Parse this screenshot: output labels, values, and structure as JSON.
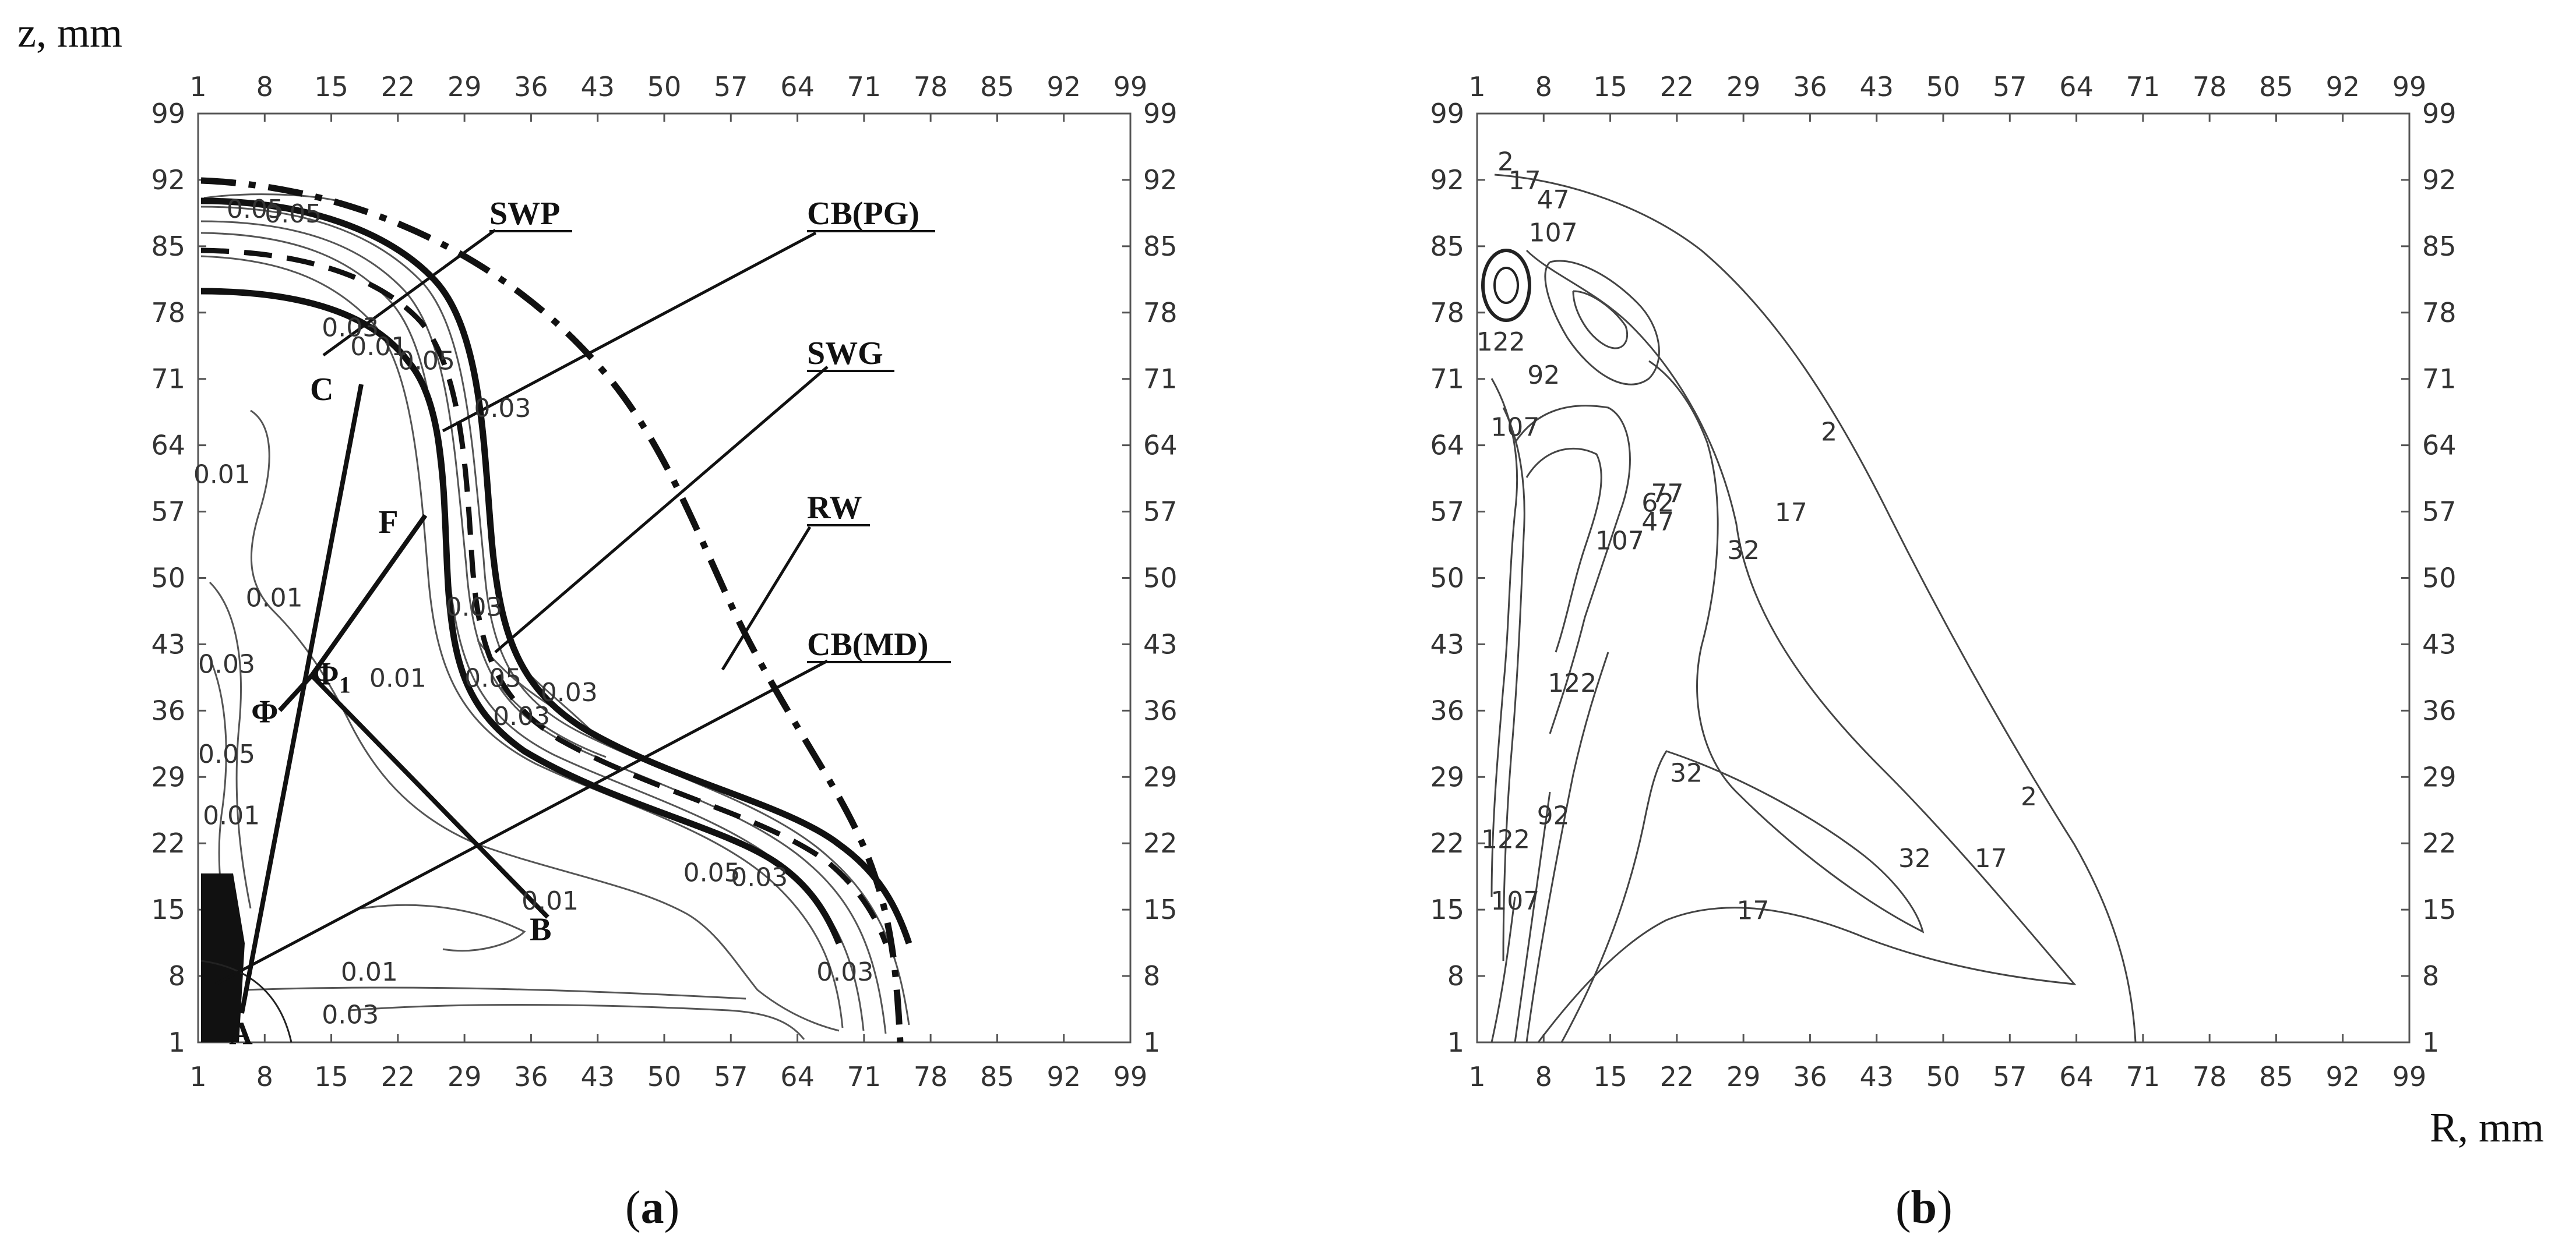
{
  "figure": {
    "axis_label_z": "z, mm",
    "axis_label_r": "R, mm"
  },
  "chart_data": [
    {
      "type": "contour",
      "panel": "(a)",
      "panel_letter": "a",
      "xlabel": "R, mm",
      "ylabel": "z, mm",
      "xlim": [
        1,
        99
      ],
      "ylim": [
        1,
        99
      ],
      "xticks": [
        "1",
        "8",
        "15",
        "22",
        "29",
        "36",
        "43",
        "50",
        "57",
        "64",
        "71",
        "78",
        "85",
        "92",
        "99"
      ],
      "yticks": [
        "1",
        "8",
        "15",
        "22",
        "29",
        "36",
        "43",
        "50",
        "57",
        "64",
        "71",
        "78",
        "85",
        "92",
        "99"
      ],
      "grid": false,
      "contour_levels": [
        "0.01",
        "0.03",
        "0.05"
      ],
      "contour_labels": [
        {
          "text": "0.05",
          "x": 7,
          "y": 88
        },
        {
          "text": "0.05",
          "x": 11,
          "y": 87.5
        },
        {
          "text": "0.03",
          "x": 17,
          "y": 75.5
        },
        {
          "text": "0.01",
          "x": 20,
          "y": 73.5
        },
        {
          "text": "0.05",
          "x": 25,
          "y": 72
        },
        {
          "text": "0.03",
          "x": 33,
          "y": 67
        },
        {
          "text": "0.01",
          "x": 3.5,
          "y": 60
        },
        {
          "text": "0.01",
          "x": 9,
          "y": 47
        },
        {
          "text": "0.03",
          "x": 4,
          "y": 40
        },
        {
          "text": "0.05",
          "x": 4,
          "y": 30.5
        },
        {
          "text": "0.01",
          "x": 4.5,
          "y": 24
        },
        {
          "text": "0.03",
          "x": 30,
          "y": 46
        },
        {
          "text": "0.01",
          "x": 22,
          "y": 38.5
        },
        {
          "text": "0.05",
          "x": 32,
          "y": 38.5
        },
        {
          "text": "0.03",
          "x": 40,
          "y": 37
        },
        {
          "text": "0.03",
          "x": 35,
          "y": 34.5
        },
        {
          "text": "0.05",
          "x": 55,
          "y": 18
        },
        {
          "text": "0.03",
          "x": 60,
          "y": 17.5
        },
        {
          "text": "0.01",
          "x": 38,
          "y": 15
        },
        {
          "text": "0.01",
          "x": 19,
          "y": 7.5
        },
        {
          "text": "0.03",
          "x": 17,
          "y": 3
        },
        {
          "text": "0.03",
          "x": 69,
          "y": 7.5
        }
      ],
      "regions": [
        {
          "label": "SWP",
          "description": "solid boundary line"
        },
        {
          "label": "CB(PG)",
          "description": "dashed boundary line"
        },
        {
          "label": "SWG",
          "description": "solid boundary line"
        },
        {
          "label": "RW",
          "description": "dash-dot outer boundary"
        },
        {
          "label": "CB(MD)",
          "description": "lower-left boundary"
        }
      ],
      "points": [
        {
          "label": "A",
          "x": 5.5,
          "y": 2
        },
        {
          "label": "B",
          "x": 37,
          "y": 13
        },
        {
          "label": "C",
          "x": 14,
          "y": 70
        },
        {
          "label": "F",
          "x": 21,
          "y": 56
        },
        {
          "label": "Φ",
          "x": 8,
          "y": 36
        },
        {
          "label": "Φ1",
          "x": 15,
          "y": 40
        }
      ],
      "point_labels": {
        "phi1_base": "Φ",
        "phi1_sub": "1"
      }
    },
    {
      "type": "contour",
      "panel": "(b)",
      "panel_letter": "b",
      "xlabel": "R, mm",
      "ylabel": "z, mm",
      "xlim": [
        1,
        99
      ],
      "ylim": [
        1,
        99
      ],
      "xticks": [
        "1",
        "8",
        "15",
        "22",
        "29",
        "36",
        "43",
        "50",
        "57",
        "64",
        "71",
        "78",
        "85",
        "92",
        "99"
      ],
      "yticks": [
        "1",
        "8",
        "15",
        "22",
        "29",
        "36",
        "43",
        "50",
        "57",
        "64",
        "71",
        "78",
        "85",
        "92",
        "99"
      ],
      "grid": false,
      "contour_levels": [
        "2",
        "17",
        "32",
        "47",
        "62",
        "77",
        "92",
        "107",
        "122"
      ],
      "contour_labels": [
        {
          "text": "2",
          "x": 4,
          "y": 93
        },
        {
          "text": "17",
          "x": 6,
          "y": 91
        },
        {
          "text": "47",
          "x": 9,
          "y": 89
        },
        {
          "text": "107",
          "x": 9,
          "y": 85.5
        },
        {
          "text": "122",
          "x": 3.5,
          "y": 74
        },
        {
          "text": "92",
          "x": 8,
          "y": 70.5
        },
        {
          "text": "107",
          "x": 5,
          "y": 65
        },
        {
          "text": "2",
          "x": 38,
          "y": 64.5
        },
        {
          "text": "77",
          "x": 21,
          "y": 58
        },
        {
          "text": "62",
          "x": 20,
          "y": 57
        },
        {
          "text": "47",
          "x": 20,
          "y": 55
        },
        {
          "text": "107",
          "x": 16,
          "y": 53
        },
        {
          "text": "32",
          "x": 29,
          "y": 52
        },
        {
          "text": "17",
          "x": 34,
          "y": 56
        },
        {
          "text": "122",
          "x": 11,
          "y": 38
        },
        {
          "text": "32",
          "x": 23,
          "y": 28.5
        },
        {
          "text": "2",
          "x": 59,
          "y": 26
        },
        {
          "text": "32",
          "x": 47,
          "y": 19.5
        },
        {
          "text": "17",
          "x": 55,
          "y": 19.5
        },
        {
          "text": "92",
          "x": 9,
          "y": 24
        },
        {
          "text": "122",
          "x": 4,
          "y": 21.5
        },
        {
          "text": "17",
          "x": 30,
          "y": 14
        },
        {
          "text": "107",
          "x": 5,
          "y": 15
        }
      ]
    }
  ]
}
